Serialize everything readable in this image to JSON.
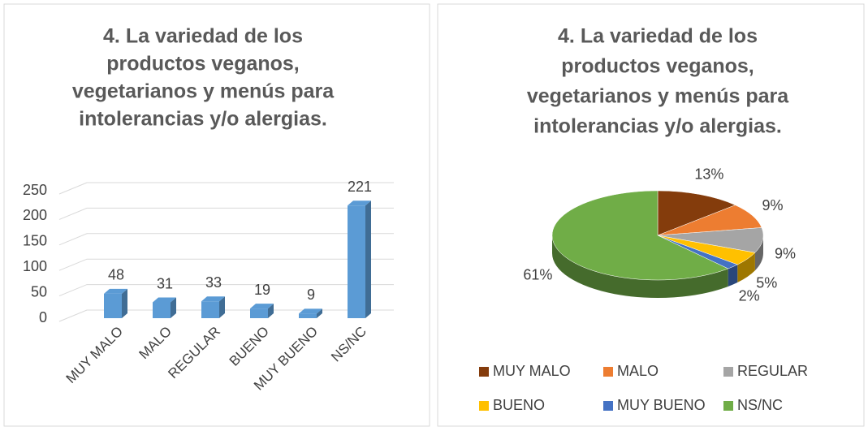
{
  "chart_data": [
    {
      "type": "bar3d",
      "title": [
        "4. La variedad de los",
        "productos veganos,",
        "vegetarianos y menús para",
        "intolerancias y/o alergias."
      ],
      "categories": [
        "MUY MALO",
        "MALO",
        "REGULAR",
        "BUENO",
        "MUY BUENO",
        "NS/NC"
      ],
      "values": [
        48,
        31,
        33,
        19,
        9,
        221
      ],
      "color": "#5b9bd5",
      "ylim": [
        0,
        250
      ],
      "yticks": [
        0,
        50,
        100,
        150,
        200,
        250
      ],
      "grid": true
    },
    {
      "type": "pie3d",
      "title": [
        "4. La variedad de los",
        "productos veganos,",
        "vegetarianos y menús para",
        "intolerancias y/o alergias."
      ],
      "categories": [
        "MUY MALO",
        "MALO",
        "REGULAR",
        "BUENO",
        "MUY BUENO",
        "NS/NC"
      ],
      "values": [
        13,
        9,
        9,
        5,
        2,
        61
      ],
      "value_labels": [
        "13%",
        "9%",
        "9%",
        "5%",
        "2%",
        "61%"
      ],
      "colors": [
        "#843c0c",
        "#ed7d31",
        "#a5a5a5",
        "#ffc000",
        "#4472c4",
        "#70ad47"
      ],
      "legend": "bottom"
    }
  ]
}
